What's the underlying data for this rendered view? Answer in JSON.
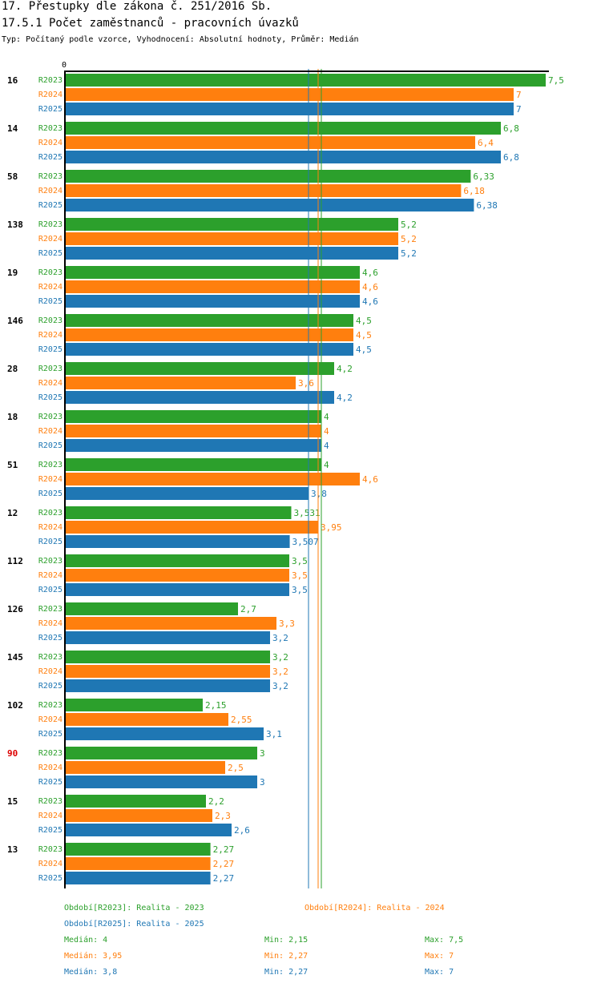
{
  "header": {
    "title": "17. Přestupky dle zákona č. 251/2016 Sb.",
    "subtitle": "17.5.1 Počet zaměstnanců - pracovních úvazků",
    "type_line": "Typ: Počítaný podle vzorce, Vyhodnocení: Absolutní hodnoty, Průměr: Medián"
  },
  "colors": {
    "R2023": "#2ca02c",
    "R2024": "#ff7f0e",
    "R2025": "#1f77b4",
    "highlight": "#dd0000"
  },
  "chart_data": {
    "type": "bar",
    "orientation": "horizontal",
    "axis_zero_label": "0",
    "xlim": [
      0,
      7.5
    ],
    "series_names": [
      "R2023",
      "R2024",
      "R2025"
    ],
    "categories": [
      {
        "label": "16",
        "highlight": false,
        "values": [
          7.5,
          7,
          7
        ],
        "labels": [
          "7,5",
          "7",
          "7"
        ]
      },
      {
        "label": "14",
        "highlight": false,
        "values": [
          6.8,
          6.4,
          6.8
        ],
        "labels": [
          "6,8",
          "6,4",
          "6,8"
        ]
      },
      {
        "label": "58",
        "highlight": false,
        "values": [
          6.33,
          6.18,
          6.38
        ],
        "labels": [
          "6,33",
          "6,18",
          "6,38"
        ]
      },
      {
        "label": "138",
        "highlight": false,
        "values": [
          5.2,
          5.2,
          5.2
        ],
        "labels": [
          "5,2",
          "5,2",
          "5,2"
        ]
      },
      {
        "label": "19",
        "highlight": false,
        "values": [
          4.6,
          4.6,
          4.6
        ],
        "labels": [
          "4,6",
          "4,6",
          "4,6"
        ]
      },
      {
        "label": "146",
        "highlight": false,
        "values": [
          4.5,
          4.5,
          4.5
        ],
        "labels": [
          "4,5",
          "4,5",
          "4,5"
        ]
      },
      {
        "label": "28",
        "highlight": false,
        "values": [
          4.2,
          3.6,
          4.2
        ],
        "labels": [
          "4,2",
          "3,6",
          "4,2"
        ]
      },
      {
        "label": "18",
        "highlight": false,
        "values": [
          4,
          4,
          4
        ],
        "labels": [
          "4",
          "4",
          "4"
        ]
      },
      {
        "label": "51",
        "highlight": false,
        "values": [
          4,
          4.6,
          3.8
        ],
        "labels": [
          "4",
          "4,6",
          "3,8"
        ]
      },
      {
        "label": "12",
        "highlight": false,
        "values": [
          3.531,
          3.95,
          3.507
        ],
        "labels": [
          "3,531",
          "3,95",
          "3,507"
        ]
      },
      {
        "label": "112",
        "highlight": false,
        "values": [
          3.5,
          3.5,
          3.5
        ],
        "labels": [
          "3,5",
          "3,5",
          "3,5"
        ]
      },
      {
        "label": "126",
        "highlight": false,
        "values": [
          2.7,
          3.3,
          3.2
        ],
        "labels": [
          "2,7",
          "3,3",
          "3,2"
        ]
      },
      {
        "label": "145",
        "highlight": false,
        "values": [
          3.2,
          3.2,
          3.2
        ],
        "labels": [
          "3,2",
          "3,2",
          "3,2"
        ]
      },
      {
        "label": "102",
        "highlight": false,
        "values": [
          2.15,
          2.55,
          3.1
        ],
        "labels": [
          "2,15",
          "2,55",
          "3,1"
        ]
      },
      {
        "label": "90",
        "highlight": true,
        "values": [
          3,
          2.5,
          3
        ],
        "labels": [
          "3",
          "2,5",
          "3"
        ]
      },
      {
        "label": "15",
        "highlight": false,
        "values": [
          2.2,
          2.3,
          2.6
        ],
        "labels": [
          "2,2",
          "2,3",
          "2,6"
        ]
      },
      {
        "label": "13",
        "highlight": false,
        "values": [
          2.27,
          2.27,
          2.27
        ],
        "labels": [
          "2,27",
          "2,27",
          "2,27"
        ]
      }
    ],
    "median_lines": [
      {
        "series": "R2023",
        "value": 4
      },
      {
        "series": "R2024",
        "value": 3.95
      },
      {
        "series": "R2025",
        "value": 3.8
      }
    ]
  },
  "legend": {
    "periods": [
      {
        "series": "R2023",
        "text": "Období[R2023]: Realita - 2023"
      },
      {
        "series": "R2024",
        "text": "Období[R2024]: Realita - 2024"
      },
      {
        "series": "R2025",
        "text": "Období[R2025]: Realita - 2025"
      }
    ],
    "stats": [
      {
        "series": "R2023",
        "median": "Medián: 4",
        "min": "Min: 2,15",
        "max": "Max: 7,5"
      },
      {
        "series": "R2024",
        "median": "Medián: 3,95",
        "min": "Min: 2,27",
        "max": "Max: 7"
      },
      {
        "series": "R2025",
        "median": "Medián: 3,8",
        "min": "Min: 2,27",
        "max": "Max: 7"
      }
    ]
  }
}
